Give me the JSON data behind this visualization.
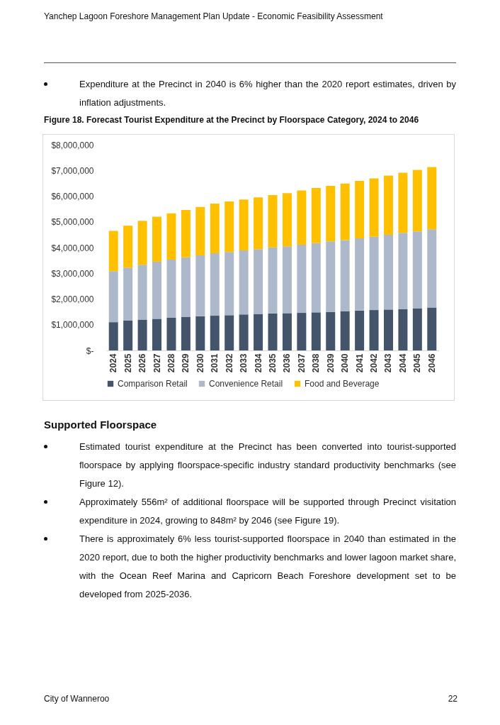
{
  "chart_data": {
    "type": "bar",
    "title": "Figure 18. Forecast Tourist Expenditure at the Precinct by Floorspace Category, 2024 to 2046",
    "categories": [
      "2024",
      "2025",
      "2026",
      "2027",
      "2028",
      "2029",
      "2030",
      "2031",
      "2032",
      "2033",
      "2034",
      "2035",
      "2036",
      "2037",
      "2038",
      "2039",
      "2040",
      "2041",
      "2042",
      "2043",
      "2044",
      "2045",
      "2046"
    ],
    "stacked": true,
    "series": [
      {
        "name": "Comparison Retail",
        "color": "#44546a",
        "values": [
          1100000,
          1160000,
          1200000,
          1230000,
          1270000,
          1310000,
          1330000,
          1350000,
          1370000,
          1400000,
          1420000,
          1440000,
          1450000,
          1460000,
          1480000,
          1500000,
          1530000,
          1550000,
          1570000,
          1590000,
          1610000,
          1640000,
          1670000
        ]
      },
      {
        "name": "Convenience Retail",
        "color": "#adb9ca",
        "values": [
          1980000,
          2060000,
          2130000,
          2220000,
          2260000,
          2310000,
          2370000,
          2430000,
          2460000,
          2490000,
          2520000,
          2570000,
          2600000,
          2650000,
          2690000,
          2740000,
          2760000,
          2810000,
          2850000,
          2910000,
          2960000,
          2990000,
          3040000
        ]
      },
      {
        "name": "Food and Beverage",
        "color": "#ffc000",
        "values": [
          1570000,
          1630000,
          1710000,
          1750000,
          1800000,
          1840000,
          1880000,
          1930000,
          1960000,
          1980000,
          2010000,
          2030000,
          2070000,
          2110000,
          2150000,
          2160000,
          2200000,
          2230000,
          2270000,
          2300000,
          2340000,
          2390000,
          2420000
        ]
      }
    ],
    "ylim": [
      0,
      8000000
    ],
    "yticks": [
      {
        "value": 0,
        "label": "$-"
      },
      {
        "value": 1000000,
        "label": "$1,000,000"
      },
      {
        "value": 2000000,
        "label": "$2,000,000"
      },
      {
        "value": 3000000,
        "label": "$3,000,000"
      },
      {
        "value": 4000000,
        "label": "$4,000,000"
      },
      {
        "value": 5000000,
        "label": "$5,000,000"
      },
      {
        "value": 6000000,
        "label": "$6,000,000"
      },
      {
        "value": 7000000,
        "label": "$7,000,000"
      },
      {
        "value": 8000000,
        "label": "$8,000,000"
      }
    ],
    "grid": false,
    "legend": "bottom",
    "annotations": [
      "Yanchep Lagoon Foreshore Management Plan Update - Economic Feasibility Assessment",
      "Expenditure at the Precinct in 2040 is 6% higher than the 2020 report estimates, driven by inflation adjustments.",
      "Supported Floorspace",
      "Estimated tourist expenditure at the Precinct has been converted into tourist-supported floorspace by applying floorspace-specific industry standard productivity benchmarks (see Figure 12).",
      "Approximately 556m² of additional floorspace will be supported through Precinct visitation expenditure in 2024, growing to 848m² by 2046 (see Figure 19).",
      "There is approximately 6% less tourist-supported floorspace in 2040 than estimated in the 2020 report, due to both the higher productivity benchmarks and lower lagoon market share, with the Ocean Reef Marina and Capricorn Beach Foreshore development set to be developed from 2025-2036.",
      "City of Wanneroo",
      "22"
    ]
  }
}
